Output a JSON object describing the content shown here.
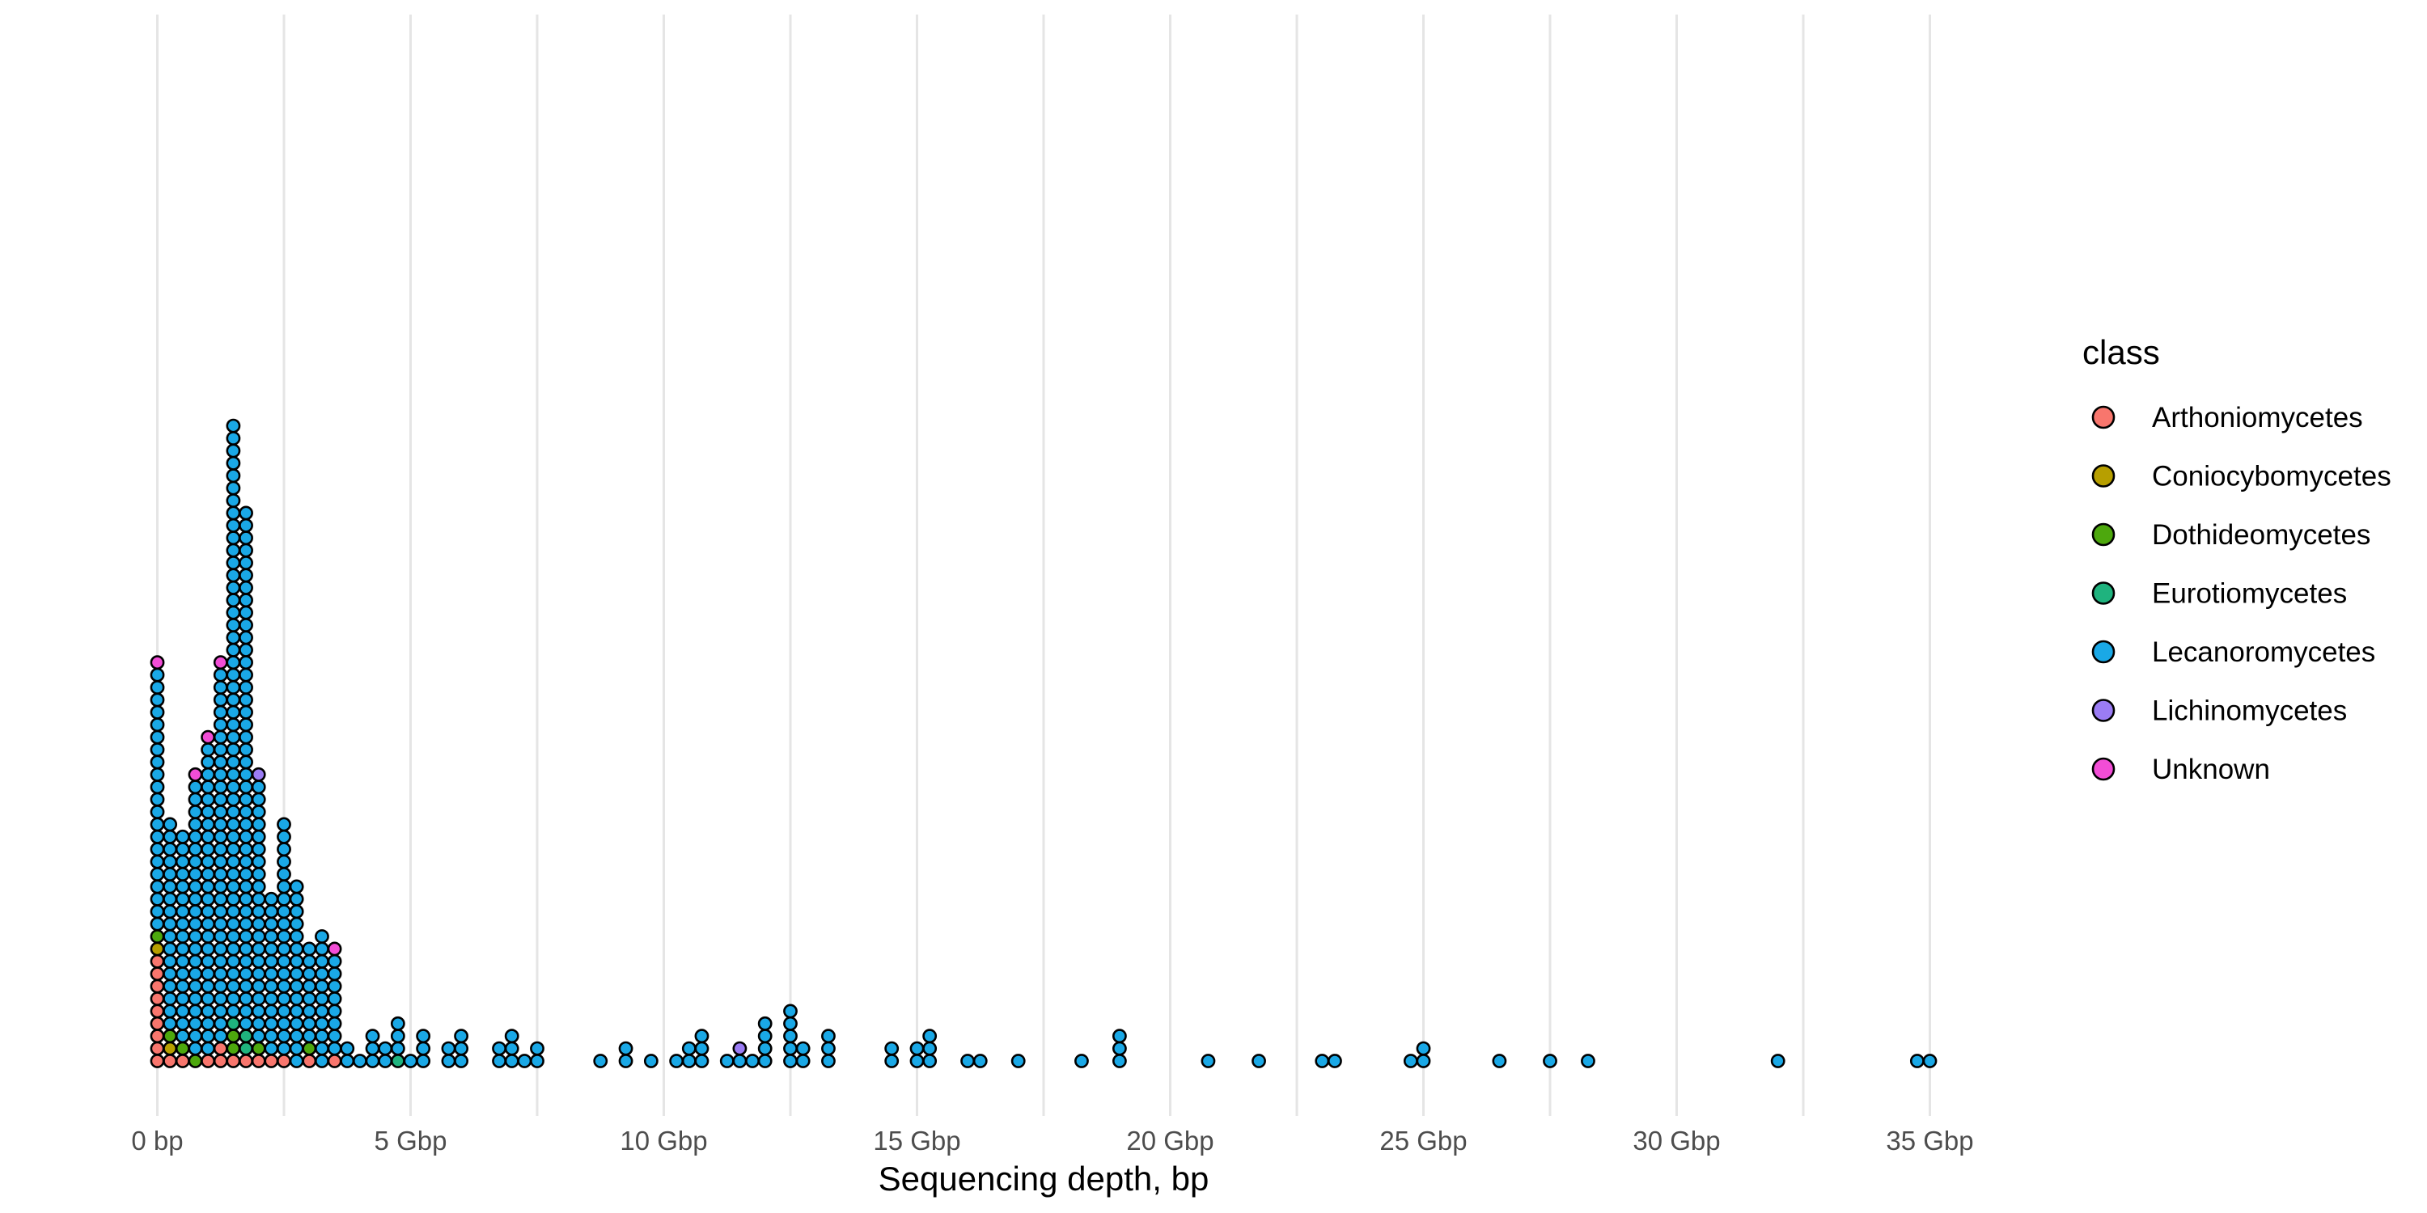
{
  "chart_data": {
    "type": "dotplot",
    "title": "",
    "xlabel": "Sequencing depth, bp",
    "ylabel": "",
    "x_unit": "Gbp",
    "xlim": [
      -0.8,
      36.1
    ],
    "x_ticks": [
      {
        "value": 0,
        "label": "0 bp"
      },
      {
        "value": 5,
        "label": "5 Gbp"
      },
      {
        "value": 10,
        "label": "10 Gbp"
      },
      {
        "value": 15,
        "label": "15 Gbp"
      },
      {
        "value": 20,
        "label": "20 Gbp"
      },
      {
        "value": 25,
        "label": "25 Gbp"
      },
      {
        "value": 30,
        "label": "30 Gbp"
      },
      {
        "value": 35,
        "label": "35 Gbp"
      }
    ],
    "grid": {
      "vertical_major": true,
      "vertical_minor": true,
      "horizontal": false
    },
    "legend": {
      "title": "class",
      "position": "right",
      "entries": [
        {
          "name": "Arthoniomycetes",
          "color": "#F8766D"
        },
        {
          "name": "Coniocybomycetes",
          "color": "#B79F00"
        },
        {
          "name": "Dothideomycetes",
          "color": "#4DA80D"
        },
        {
          "name": "Eurotiomycetes",
          "color": "#1FB37E"
        },
        {
          "name": "Lecanoromycetes",
          "color": "#1AA8E6"
        },
        {
          "name": "Lichinomycetes",
          "color": "#9B7CF4"
        },
        {
          "name": "Unknown",
          "color": "#F24DD6"
        }
      ]
    },
    "bin_width_gbp": 0.25,
    "stacks": [
      {
        "x": 0.0,
        "classes": [
          "Arthoniomycetes",
          "Arthoniomycetes",
          "Arthoniomycetes",
          "Arthoniomycetes",
          "Arthoniomycetes",
          "Arthoniomycetes",
          "Arthoniomycetes",
          "Arthoniomycetes",
          "Arthoniomycetes",
          "Coniocybomycetes",
          "Dothideomycetes",
          "Lecanoromycetes",
          "Lecanoromycetes",
          "Lecanoromycetes",
          "Lecanoromycetes",
          "Lecanoromycetes",
          "Lecanoromycetes",
          "Lecanoromycetes",
          "Lecanoromycetes",
          "Lecanoromycetes",
          "Lecanoromycetes",
          "Lecanoromycetes",
          "Lecanoromycetes",
          "Lecanoromycetes",
          "Lecanoromycetes",
          "Lecanoromycetes",
          "Lecanoromycetes",
          "Lecanoromycetes",
          "Lecanoromycetes",
          "Lecanoromycetes",
          "Lecanoromycetes",
          "Lecanoromycetes",
          "Unknown"
        ]
      },
      {
        "x": 0.25,
        "classes": [
          "Arthoniomycetes",
          "Coniocybomycetes",
          "Dothideomycetes",
          "Lecanoromycetes",
          "Lecanoromycetes",
          "Lecanoromycetes",
          "Lecanoromycetes",
          "Lecanoromycetes",
          "Lecanoromycetes",
          "Lecanoromycetes",
          "Lecanoromycetes",
          "Lecanoromycetes",
          "Lecanoromycetes",
          "Lecanoromycetes",
          "Lecanoromycetes",
          "Lecanoromycetes",
          "Lecanoromycetes",
          "Lecanoromycetes",
          "Lecanoromycetes",
          "Lecanoromycetes"
        ]
      },
      {
        "x": 0.5,
        "classes": [
          "Arthoniomycetes",
          "Dothideomycetes",
          "Lecanoromycetes",
          "Lecanoromycetes",
          "Lecanoromycetes",
          "Lecanoromycetes",
          "Lecanoromycetes",
          "Lecanoromycetes",
          "Lecanoromycetes",
          "Lecanoromycetes",
          "Lecanoromycetes",
          "Lecanoromycetes",
          "Lecanoromycetes",
          "Lecanoromycetes",
          "Lecanoromycetes",
          "Lecanoromycetes",
          "Lecanoromycetes",
          "Lecanoromycetes",
          "Lecanoromycetes"
        ]
      },
      {
        "x": 0.75,
        "classes": [
          "Dothideomycetes",
          "Lecanoromycetes",
          "Lecanoromycetes",
          "Lecanoromycetes",
          "Lecanoromycetes",
          "Lecanoromycetes",
          "Lecanoromycetes",
          "Lecanoromycetes",
          "Lecanoromycetes",
          "Lecanoromycetes",
          "Lecanoromycetes",
          "Lecanoromycetes",
          "Lecanoromycetes",
          "Lecanoromycetes",
          "Lecanoromycetes",
          "Lecanoromycetes",
          "Lecanoromycetes",
          "Lecanoromycetes",
          "Lecanoromycetes",
          "Lecanoromycetes",
          "Lecanoromycetes",
          "Lecanoromycetes",
          "Lecanoromycetes",
          "Unknown"
        ]
      },
      {
        "x": 1.0,
        "classes": [
          "Arthoniomycetes",
          "Lecanoromycetes",
          "Lecanoromycetes",
          "Lecanoromycetes",
          "Lecanoromycetes",
          "Lecanoromycetes",
          "Lecanoromycetes",
          "Lecanoromycetes",
          "Lecanoromycetes",
          "Lecanoromycetes",
          "Lecanoromycetes",
          "Lecanoromycetes",
          "Lecanoromycetes",
          "Lecanoromycetes",
          "Lecanoromycetes",
          "Lecanoromycetes",
          "Lecanoromycetes",
          "Lecanoromycetes",
          "Lecanoromycetes",
          "Lecanoromycetes",
          "Lecanoromycetes",
          "Lecanoromycetes",
          "Lecanoromycetes",
          "Lecanoromycetes",
          "Lecanoromycetes",
          "Lecanoromycetes",
          "Unknown"
        ]
      },
      {
        "x": 1.25,
        "classes": [
          "Arthoniomycetes",
          "Arthoniomycetes",
          "Lecanoromycetes",
          "Lecanoromycetes",
          "Lecanoromycetes",
          "Lecanoromycetes",
          "Lecanoromycetes",
          "Lecanoromycetes",
          "Lecanoromycetes",
          "Lecanoromycetes",
          "Lecanoromycetes",
          "Lecanoromycetes",
          "Lecanoromycetes",
          "Lecanoromycetes",
          "Lecanoromycetes",
          "Lecanoromycetes",
          "Lecanoromycetes",
          "Lecanoromycetes",
          "Lecanoromycetes",
          "Lecanoromycetes",
          "Lecanoromycetes",
          "Lecanoromycetes",
          "Lecanoromycetes",
          "Lecanoromycetes",
          "Lecanoromycetes",
          "Lecanoromycetes",
          "Lecanoromycetes",
          "Lecanoromycetes",
          "Lecanoromycetes",
          "Lecanoromycetes",
          "Lecanoromycetes",
          "Lecanoromycetes",
          "Unknown"
        ]
      },
      {
        "x": 1.5,
        "classes": [
          "Arthoniomycetes",
          "Dothideomycetes",
          "Dothideomycetes",
          "Eurotiomycetes",
          "Lecanoromycetes",
          "Lecanoromycetes",
          "Lecanoromycetes",
          "Lecanoromycetes",
          "Lecanoromycetes",
          "Lecanoromycetes",
          "Lecanoromycetes",
          "Lecanoromycetes",
          "Lecanoromycetes",
          "Lecanoromycetes",
          "Lecanoromycetes",
          "Lecanoromycetes",
          "Lecanoromycetes",
          "Lecanoromycetes",
          "Lecanoromycetes",
          "Lecanoromycetes",
          "Lecanoromycetes",
          "Lecanoromycetes",
          "Lecanoromycetes",
          "Lecanoromycetes",
          "Lecanoromycetes",
          "Lecanoromycetes",
          "Lecanoromycetes",
          "Lecanoromycetes",
          "Lecanoromycetes",
          "Lecanoromycetes",
          "Lecanoromycetes",
          "Lecanoromycetes",
          "Lecanoromycetes",
          "Lecanoromycetes",
          "Lecanoromycetes",
          "Lecanoromycetes",
          "Lecanoromycetes",
          "Lecanoromycetes",
          "Lecanoromycetes",
          "Lecanoromycetes",
          "Lecanoromycetes",
          "Lecanoromycetes",
          "Lecanoromycetes",
          "Lecanoromycetes",
          "Lecanoromycetes",
          "Lecanoromycetes",
          "Lecanoromycetes",
          "Lecanoromycetes",
          "Lecanoromycetes",
          "Lecanoromycetes",
          "Lecanoromycetes",
          "Lecanoromycetes"
        ]
      },
      {
        "x": 1.75,
        "classes": [
          "Arthoniomycetes",
          "Eurotiomycetes",
          "Eurotiomycetes",
          "Lecanoromycetes",
          "Lecanoromycetes",
          "Lecanoromycetes",
          "Lecanoromycetes",
          "Lecanoromycetes",
          "Lecanoromycetes",
          "Lecanoromycetes",
          "Lecanoromycetes",
          "Lecanoromycetes",
          "Lecanoromycetes",
          "Lecanoromycetes",
          "Lecanoromycetes",
          "Lecanoromycetes",
          "Lecanoromycetes",
          "Lecanoromycetes",
          "Lecanoromycetes",
          "Lecanoromycetes",
          "Lecanoromycetes",
          "Lecanoromycetes",
          "Lecanoromycetes",
          "Lecanoromycetes",
          "Lecanoromycetes",
          "Lecanoromycetes",
          "Lecanoromycetes",
          "Lecanoromycetes",
          "Lecanoromycetes",
          "Lecanoromycetes",
          "Lecanoromycetes",
          "Lecanoromycetes",
          "Lecanoromycetes",
          "Lecanoromycetes",
          "Lecanoromycetes",
          "Lecanoromycetes",
          "Lecanoromycetes",
          "Lecanoromycetes",
          "Lecanoromycetes",
          "Lecanoromycetes",
          "Lecanoromycetes",
          "Lecanoromycetes",
          "Lecanoromycetes",
          "Lecanoromycetes",
          "Lecanoromycetes"
        ]
      },
      {
        "x": 2.0,
        "classes": [
          "Arthoniomycetes",
          "Dothideomycetes",
          "Lecanoromycetes",
          "Lecanoromycetes",
          "Lecanoromycetes",
          "Lecanoromycetes",
          "Lecanoromycetes",
          "Lecanoromycetes",
          "Lecanoromycetes",
          "Lecanoromycetes",
          "Lecanoromycetes",
          "Lecanoromycetes",
          "Lecanoromycetes",
          "Lecanoromycetes",
          "Lecanoromycetes",
          "Lecanoromycetes",
          "Lecanoromycetes",
          "Lecanoromycetes",
          "Lecanoromycetes",
          "Lecanoromycetes",
          "Lecanoromycetes",
          "Lecanoromycetes",
          "Lecanoromycetes",
          "Lichinomycetes"
        ]
      },
      {
        "x": 2.25,
        "classes": [
          "Arthoniomycetes",
          "Lecanoromycetes",
          "Lecanoromycetes",
          "Lecanoromycetes",
          "Lecanoromycetes",
          "Lecanoromycetes",
          "Lecanoromycetes",
          "Lecanoromycetes",
          "Lecanoromycetes",
          "Lecanoromycetes",
          "Lecanoromycetes",
          "Lecanoromycetes",
          "Lecanoromycetes",
          "Lecanoromycetes"
        ]
      },
      {
        "x": 2.5,
        "classes": [
          "Arthoniomycetes",
          "Lecanoromycetes",
          "Lecanoromycetes",
          "Lecanoromycetes",
          "Lecanoromycetes",
          "Lecanoromycetes",
          "Lecanoromycetes",
          "Lecanoromycetes",
          "Lecanoromycetes",
          "Lecanoromycetes",
          "Lecanoromycetes",
          "Lecanoromycetes",
          "Lecanoromycetes",
          "Lecanoromycetes",
          "Lecanoromycetes",
          "Lecanoromycetes",
          "Lecanoromycetes",
          "Lecanoromycetes",
          "Lecanoromycetes",
          "Lecanoromycetes"
        ]
      },
      {
        "x": 2.75,
        "classes": [
          "Lecanoromycetes",
          "Lecanoromycetes",
          "Lecanoromycetes",
          "Lecanoromycetes",
          "Lecanoromycetes",
          "Lecanoromycetes",
          "Lecanoromycetes",
          "Lecanoromycetes",
          "Lecanoromycetes",
          "Lecanoromycetes",
          "Lecanoromycetes",
          "Lecanoromycetes",
          "Lecanoromycetes",
          "Lecanoromycetes",
          "Lecanoromycetes"
        ]
      },
      {
        "x": 3.0,
        "classes": [
          "Arthoniomycetes",
          "Dothideomycetes",
          "Lecanoromycetes",
          "Lecanoromycetes",
          "Lecanoromycetes",
          "Lecanoromycetes",
          "Lecanoromycetes",
          "Lecanoromycetes",
          "Lecanoromycetes",
          "Lecanoromycetes"
        ]
      },
      {
        "x": 3.25,
        "classes": [
          "Lecanoromycetes",
          "Lecanoromycetes",
          "Lecanoromycetes",
          "Lecanoromycetes",
          "Lecanoromycetes",
          "Lecanoromycetes",
          "Lecanoromycetes",
          "Lecanoromycetes",
          "Lecanoromycetes",
          "Lecanoromycetes",
          "Lecanoromycetes"
        ]
      },
      {
        "x": 3.5,
        "classes": [
          "Arthoniomycetes",
          "Lecanoromycetes",
          "Lecanoromycetes",
          "Lecanoromycetes",
          "Lecanoromycetes",
          "Lecanoromycetes",
          "Lecanoromycetes",
          "Lecanoromycetes",
          "Lecanoromycetes",
          "Unknown"
        ]
      },
      {
        "x": 3.75,
        "classes": [
          "Lecanoromycetes",
          "Lecanoromycetes"
        ]
      },
      {
        "x": 4.0,
        "classes": [
          "Lecanoromycetes"
        ]
      },
      {
        "x": 4.25,
        "classes": [
          "Lecanoromycetes",
          "Lecanoromycetes",
          "Lecanoromycetes"
        ]
      },
      {
        "x": 4.5,
        "classes": [
          "Lecanoromycetes",
          "Lecanoromycetes"
        ]
      },
      {
        "x": 4.75,
        "classes": [
          "Eurotiomycetes",
          "Lecanoromycetes",
          "Lecanoromycetes",
          "Lecanoromycetes"
        ]
      },
      {
        "x": 5.0,
        "classes": [
          "Lecanoromycetes"
        ]
      },
      {
        "x": 5.25,
        "classes": [
          "Lecanoromycetes",
          "Lecanoromycetes",
          "Lecanoromycetes"
        ]
      },
      {
        "x": 5.75,
        "classes": [
          "Lecanoromycetes",
          "Lecanoromycetes"
        ]
      },
      {
        "x": 6.0,
        "classes": [
          "Lecanoromycetes",
          "Lecanoromycetes",
          "Lecanoromycetes"
        ]
      },
      {
        "x": 6.75,
        "classes": [
          "Lecanoromycetes",
          "Lecanoromycetes"
        ]
      },
      {
        "x": 7.0,
        "classes": [
          "Lecanoromycetes",
          "Lecanoromycetes",
          "Lecanoromycetes"
        ]
      },
      {
        "x": 7.25,
        "classes": [
          "Lecanoromycetes"
        ]
      },
      {
        "x": 7.5,
        "classes": [
          "Lecanoromycetes",
          "Lecanoromycetes"
        ]
      },
      {
        "x": 8.75,
        "classes": [
          "Lecanoromycetes"
        ]
      },
      {
        "x": 9.25,
        "classes": [
          "Lecanoromycetes",
          "Lecanoromycetes"
        ]
      },
      {
        "x": 9.75,
        "classes": [
          "Lecanoromycetes"
        ]
      },
      {
        "x": 10.25,
        "classes": [
          "Lecanoromycetes"
        ]
      },
      {
        "x": 10.5,
        "classes": [
          "Lecanoromycetes",
          "Lecanoromycetes"
        ]
      },
      {
        "x": 10.75,
        "classes": [
          "Lecanoromycetes",
          "Lecanoromycetes",
          "Lecanoromycetes"
        ]
      },
      {
        "x": 11.25,
        "classes": [
          "Lecanoromycetes"
        ]
      },
      {
        "x": 11.5,
        "classes": [
          "Lecanoromycetes",
          "Lichinomycetes"
        ]
      },
      {
        "x": 11.75,
        "classes": [
          "Lecanoromycetes"
        ]
      },
      {
        "x": 12.0,
        "classes": [
          "Lecanoromycetes",
          "Lecanoromycetes",
          "Lecanoromycetes",
          "Lecanoromycetes"
        ]
      },
      {
        "x": 12.5,
        "classes": [
          "Lecanoromycetes",
          "Lecanoromycetes",
          "Lecanoromycetes",
          "Lecanoromycetes",
          "Lecanoromycetes"
        ]
      },
      {
        "x": 12.75,
        "classes": [
          "Lecanoromycetes",
          "Lecanoromycetes"
        ]
      },
      {
        "x": 13.25,
        "classes": [
          "Lecanoromycetes",
          "Lecanoromycetes",
          "Lecanoromycetes"
        ]
      },
      {
        "x": 14.5,
        "classes": [
          "Lecanoromycetes",
          "Lecanoromycetes"
        ]
      },
      {
        "x": 15.0,
        "classes": [
          "Lecanoromycetes",
          "Lecanoromycetes"
        ]
      },
      {
        "x": 15.25,
        "classes": [
          "Lecanoromycetes",
          "Lecanoromycetes",
          "Lecanoromycetes"
        ]
      },
      {
        "x": 16.0,
        "classes": [
          "Lecanoromycetes"
        ]
      },
      {
        "x": 16.25,
        "classes": [
          "Lecanoromycetes"
        ]
      },
      {
        "x": 17.0,
        "classes": [
          "Lecanoromycetes"
        ]
      },
      {
        "x": 18.25,
        "classes": [
          "Lecanoromycetes"
        ]
      },
      {
        "x": 19.0,
        "classes": [
          "Lecanoromycetes",
          "Lecanoromycetes",
          "Lecanoromycetes"
        ]
      },
      {
        "x": 20.75,
        "classes": [
          "Lecanoromycetes"
        ]
      },
      {
        "x": 21.75,
        "classes": [
          "Lecanoromycetes"
        ]
      },
      {
        "x": 23.0,
        "classes": [
          "Lecanoromycetes"
        ]
      },
      {
        "x": 23.25,
        "classes": [
          "Lecanoromycetes"
        ]
      },
      {
        "x": 24.75,
        "classes": [
          "Lecanoromycetes"
        ]
      },
      {
        "x": 25.0,
        "classes": [
          "Lecanoromycetes",
          "Lecanoromycetes"
        ]
      },
      {
        "x": 26.5,
        "classes": [
          "Lecanoromycetes"
        ]
      },
      {
        "x": 27.5,
        "classes": [
          "Lecanoromycetes"
        ]
      },
      {
        "x": 28.25,
        "classes": [
          "Lecanoromycetes"
        ]
      },
      {
        "x": 32.0,
        "classes": [
          "Lecanoromycetes"
        ]
      },
      {
        "x": 34.75,
        "classes": [
          "Lecanoromycetes"
        ]
      },
      {
        "x": 35.0,
        "classes": [
          "Lecanoromycetes"
        ]
      }
    ]
  }
}
